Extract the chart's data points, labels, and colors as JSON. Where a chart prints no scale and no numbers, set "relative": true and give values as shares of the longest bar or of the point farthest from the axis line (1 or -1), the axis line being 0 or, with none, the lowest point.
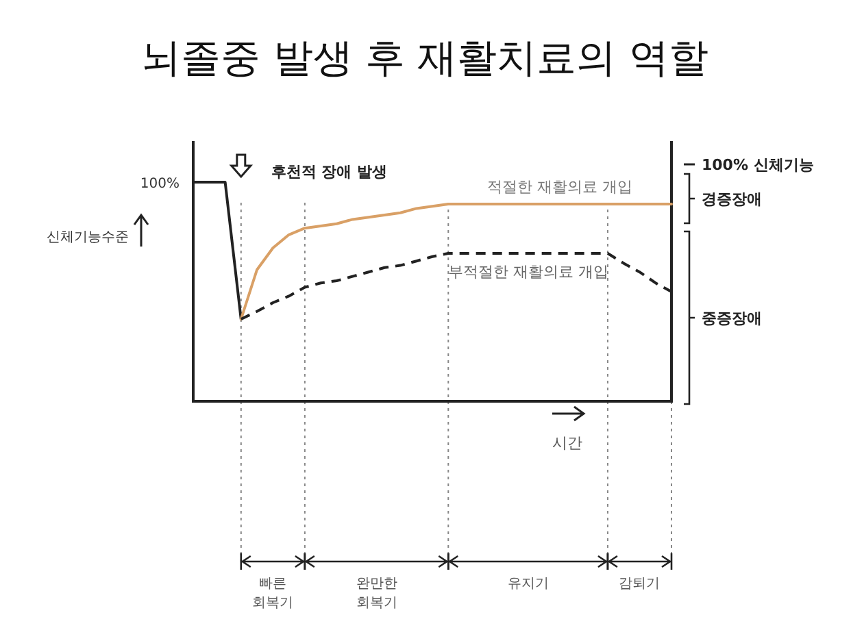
{
  "chart_data": {
    "type": "line",
    "title": "뇌졸중 발생 후 재활치료의 역할",
    "xlabel": "시간",
    "ylabel": "신체기능수준",
    "relative": true,
    "grid": "x",
    "categories": [
      null,
      null,
      null,
      null,
      null,
      null,
      null,
      null,
      null,
      null,
      null,
      null,
      null,
      null,
      null,
      null,
      null,
      null,
      null,
      null,
      null,
      null,
      null,
      null,
      null,
      null,
      null,
      null,
      null,
      null,
      null
    ],
    "series": [
      {
        "color": "#222222",
        "line_style": "solid",
        "values": [
          1,
          1,
          1,
          0.375,
          null,
          null,
          null,
          null,
          null,
          null,
          null,
          null,
          null,
          null,
          null,
          null,
          null,
          null,
          null,
          null,
          null,
          null,
          null,
          null,
          null,
          null,
          null,
          null,
          null,
          null,
          null
        ]
      },
      {
        "name": "적절한 재활의료 개입",
        "color": "#d9a066",
        "line_style": "solid",
        "values": [
          null,
          null,
          null,
          0.375,
          0.6,
          0.7,
          0.76,
          0.79,
          0.8,
          0.81,
          0.83,
          0.84,
          0.85,
          0.86,
          0.88,
          0.89,
          0.9,
          0.9,
          0.9,
          0.9,
          0.9,
          0.9,
          0.9,
          0.9,
          0.9,
          0.9,
          0.9,
          0.9,
          0.9,
          0.9,
          0.9
        ]
      },
      {
        "name": "부적절한 재활의료 개입",
        "color": "#222222",
        "line_style": "dashed",
        "values": [
          null,
          null,
          null,
          0.375,
          0.41,
          0.45,
          0.48,
          0.52,
          0.54,
          0.55,
          0.57,
          0.59,
          0.61,
          0.62,
          0.64,
          0.66,
          0.675,
          0.675,
          0.675,
          0.675,
          0.675,
          0.675,
          0.675,
          0.675,
          0.675,
          0.675,
          0.675,
          0.63,
          0.59,
          0.54,
          0.5
        ]
      }
    ],
    "annotations": [
      "100%",
      "후천적 장애 발생",
      "100% 신체기능",
      "경증장애",
      "중증장애",
      "빠른 회복기",
      "완만한 회복기",
      "유지기",
      "감퇴기"
    ]
  }
}
